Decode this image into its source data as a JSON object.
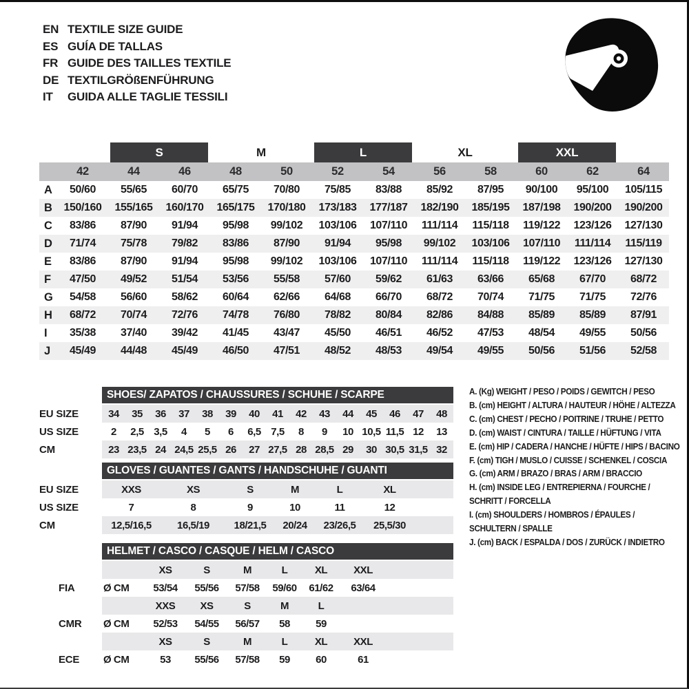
{
  "colors": {
    "header_dark": "#3b3b3d",
    "band_gray": "#c2c2c4",
    "band_light": "#e8e8ea",
    "row_alt": "#efeff0",
    "text": "#1c1c1e",
    "icon_black": "#0b0b0b"
  },
  "header": {
    "helmet_icon": "full-face-helmet-icon",
    "languages": [
      {
        "code": "EN",
        "title": "TEXTILE SIZE GUIDE"
      },
      {
        "code": "ES",
        "title": "GUÍA DE TALLAS"
      },
      {
        "code": "FR",
        "title": "GUIDE DES TAILLES TEXTILE"
      },
      {
        "code": "DE",
        "title": "TEXTILGRÖßENFÜHRUNG"
      },
      {
        "code": "IT",
        "title": "GUIDA ALLE TAGLIE TESSILI"
      }
    ]
  },
  "textile_table": {
    "size_groups": [
      {
        "label": "S",
        "dark": true
      },
      {
        "label": "M",
        "dark": false
      },
      {
        "label": "L",
        "dark": true
      },
      {
        "label": "XL",
        "dark": false
      },
      {
        "label": "XXL",
        "dark": true
      }
    ],
    "columns": [
      "42",
      "44",
      "46",
      "48",
      "50",
      "52",
      "54",
      "56",
      "58",
      "60",
      "62",
      "64"
    ],
    "rows": [
      {
        "letter": "A",
        "values": [
          "50/60",
          "55/65",
          "60/70",
          "65/75",
          "70/80",
          "75/85",
          "83/88",
          "85/92",
          "87/95",
          "90/100",
          "95/100",
          "105/115"
        ]
      },
      {
        "letter": "B",
        "values": [
          "150/160",
          "155/165",
          "160/170",
          "165/175",
          "170/180",
          "173/183",
          "177/187",
          "182/190",
          "185/195",
          "187/198",
          "190/200",
          "190/200"
        ]
      },
      {
        "letter": "C",
        "values": [
          "83/86",
          "87/90",
          "91/94",
          "95/98",
          "99/102",
          "103/106",
          "107/110",
          "111/114",
          "115/118",
          "119/122",
          "123/126",
          "127/130"
        ]
      },
      {
        "letter": "D",
        "values": [
          "71/74",
          "75/78",
          "79/82",
          "83/86",
          "87/90",
          "91/94",
          "95/98",
          "99/102",
          "103/106",
          "107/110",
          "111/114",
          "115/119"
        ]
      },
      {
        "letter": "E",
        "values": [
          "83/86",
          "87/90",
          "91/94",
          "95/98",
          "99/102",
          "103/106",
          "107/110",
          "111/114",
          "115/118",
          "119/122",
          "123/126",
          "127/130"
        ]
      },
      {
        "letter": "F",
        "values": [
          "47/50",
          "49/52",
          "51/54",
          "53/56",
          "55/58",
          "57/60",
          "59/62",
          "61/63",
          "63/66",
          "65/68",
          "67/70",
          "68/72"
        ]
      },
      {
        "letter": "G",
        "values": [
          "54/58",
          "56/60",
          "58/62",
          "60/64",
          "62/66",
          "64/68",
          "66/70",
          "68/72",
          "70/74",
          "71/75",
          "71/75",
          "72/76"
        ]
      },
      {
        "letter": "H",
        "values": [
          "68/72",
          "70/74",
          "72/76",
          "74/78",
          "76/80",
          "78/82",
          "80/84",
          "82/86",
          "84/88",
          "85/89",
          "85/89",
          "87/91"
        ]
      },
      {
        "letter": "I",
        "values": [
          "35/38",
          "37/40",
          "39/42",
          "41/45",
          "43/47",
          "45/50",
          "46/51",
          "46/52",
          "47/53",
          "48/54",
          "49/55",
          "50/56"
        ]
      },
      {
        "letter": "J",
        "values": [
          "45/49",
          "44/48",
          "45/49",
          "46/50",
          "47/51",
          "48/52",
          "48/53",
          "49/54",
          "49/55",
          "50/56",
          "51/56",
          "52/58"
        ]
      }
    ]
  },
  "shoes_table": {
    "title": "SHOES/ ZAPATOS / CHAUSSURES / SCHUHE / SCARPE",
    "rows": [
      {
        "label": "EU SIZE",
        "values": [
          "34",
          "35",
          "36",
          "37",
          "38",
          "39",
          "40",
          "41",
          "42",
          "43",
          "44",
          "45",
          "46",
          "47",
          "48"
        ]
      },
      {
        "label": "US SIZE",
        "values": [
          "2",
          "2,5",
          "3,5",
          "4",
          "5",
          "6",
          "6,5",
          "7,5",
          "8",
          "9",
          "10",
          "10,5",
          "11,5",
          "12",
          "13"
        ]
      },
      {
        "label": "CM",
        "values": [
          "23",
          "23,5",
          "24",
          "24,5",
          "25,5",
          "26",
          "27",
          "27,5",
          "28",
          "28,5",
          "29",
          "30",
          "30,5",
          "31,5",
          "32"
        ]
      }
    ]
  },
  "gloves_table": {
    "title": "GLOVES / GUANTES / GANTS / HANDSCHUHE / GUANTI",
    "rows": [
      {
        "label": "EU SIZE",
        "values": [
          "XXS",
          "XS",
          "S",
          "M",
          "L",
          "XL"
        ]
      },
      {
        "label": "US SIZE",
        "values": [
          "7",
          "8",
          "9",
          "10",
          "11",
          "12"
        ]
      },
      {
        "label": "CM",
        "values": [
          "12,5/16,5",
          "16,5/19",
          "18/21,5",
          "20/24",
          "23/26,5",
          "25,5/30"
        ]
      }
    ]
  },
  "helmet_table": {
    "title": "HELMET / CASCO / CASQUE / HELM / CASCO",
    "unit_label": "Ø CM",
    "sections": [
      {
        "label": "FIA",
        "sizes": [
          "XS",
          "S",
          "M",
          "L",
          "XL",
          "XXL"
        ],
        "values": [
          "53/54",
          "55/56",
          "57/58",
          "59/60",
          "61/62",
          "63/64"
        ]
      },
      {
        "label": "CMR",
        "sizes": [
          "XXS",
          "XS",
          "S",
          "M",
          "L",
          ""
        ],
        "values": [
          "52/53",
          "54/55",
          "56/57",
          "58",
          "59",
          ""
        ]
      },
      {
        "label": "ECE",
        "sizes": [
          "XS",
          "S",
          "M",
          "L",
          "XL",
          "XXL"
        ],
        "values": [
          "53",
          "55/56",
          "57/58",
          "59",
          "60",
          "61"
        ]
      }
    ]
  },
  "legend": {
    "lines": [
      "A. (Kg) WEIGHT / PESO / POIDS / GEWITCH / PESO",
      "B. (cm) HEIGHT / ALTURA / HAUTEUR / HÖHE / ALTEZZA",
      "C. (cm) CHEST / PECHO / POITRINE / TRUHE / PETTO",
      "D. (cm) WAIST / CINTURA / TAILLE / HÜFTUNG / VITA",
      "E. (cm) HIP / CADERA / HANCHE / HÜFTE / HIPS / BACINO",
      "F. (cm) TIGH / MUSLO / CUISSE / SCHENKEL / COSCIA",
      "G. (cm) ARM / BRAZO / BRAS / ARM / BRACCIO",
      "H. (cm) INSIDE LEG / ENTREPIERNA / FOURCHE /",
      "SCHRITT / FORCELLA",
      "I. (cm) SHOULDERS / HOMBROS / ÉPAULES /",
      "SCHULTERN / SPALLE",
      "J. (cm) BACK / ESPALDA / DOS / ZURÜCK / INDIETRO"
    ]
  }
}
